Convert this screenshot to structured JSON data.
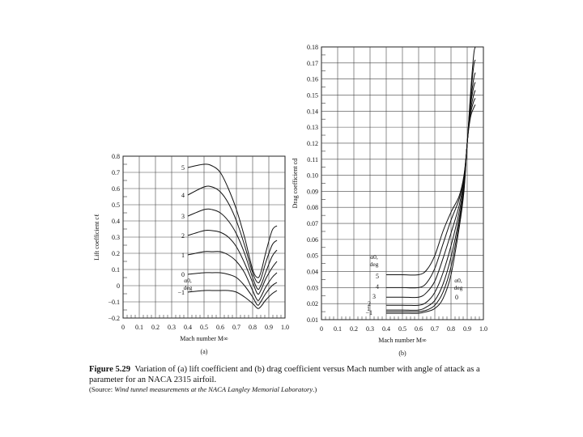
{
  "figure": {
    "label": "Figure 5.29",
    "caption": "Variation of (a) lift coefficient and (b) drag coefficient versus Mach number with angle of attack as a parameter for an NACA 2315 airfoil.",
    "source_prefix": "(Source: ",
    "source_text": "Wind tunnel measurements at the NACA Langley Memorial Laboratory",
    "source_suffix": ".)"
  },
  "chart_data": [
    {
      "type": "line",
      "panel": "(a)",
      "xlabel": "Mach number M∞",
      "ylabel": "Lift coefficient cℓ",
      "xlim": [
        0,
        1.0
      ],
      "ylim": [
        -0.2,
        0.8
      ],
      "xticks": [
        "0",
        "0.1",
        "0.2",
        "0.3",
        "0.4",
        "0.5",
        "0.6",
        "0.7",
        "0.8",
        "0.9",
        "1.0"
      ],
      "yticks": [
        "−0.2",
        "−0.1",
        "0",
        "0.1",
        "0.2",
        "0.3",
        "0.4",
        "0.5",
        "0.6",
        "0.7",
        "0.8"
      ],
      "grid": true,
      "annotation": [
        "α0,",
        "deg"
      ],
      "series": [
        {
          "name": "5",
          "x": [
            0.4,
            0.5,
            0.55,
            0.6,
            0.65,
            0.7,
            0.75,
            0.8,
            0.83,
            0.85,
            0.88,
            0.92,
            0.95
          ],
          "y": [
            0.73,
            0.75,
            0.74,
            0.7,
            0.6,
            0.47,
            0.3,
            0.1,
            0.05,
            0.08,
            0.2,
            0.34,
            0.37
          ]
        },
        {
          "name": "4",
          "x": [
            0.4,
            0.5,
            0.55,
            0.6,
            0.65,
            0.7,
            0.75,
            0.8,
            0.83,
            0.85,
            0.88,
            0.92,
            0.95
          ],
          "y": [
            0.56,
            0.61,
            0.61,
            0.58,
            0.51,
            0.4,
            0.25,
            0.08,
            0.02,
            0.04,
            0.14,
            0.25,
            0.28
          ]
        },
        {
          "name": "3",
          "x": [
            0.4,
            0.5,
            0.55,
            0.6,
            0.65,
            0.7,
            0.75,
            0.8,
            0.83,
            0.85,
            0.88,
            0.92,
            0.95
          ],
          "y": [
            0.43,
            0.47,
            0.47,
            0.45,
            0.4,
            0.32,
            0.2,
            0.05,
            -0.02,
            0.0,
            0.08,
            0.18,
            0.22
          ]
        },
        {
          "name": "2",
          "x": [
            0.4,
            0.5,
            0.55,
            0.6,
            0.65,
            0.7,
            0.75,
            0.8,
            0.83,
            0.85,
            0.88,
            0.92,
            0.95
          ],
          "y": [
            0.31,
            0.34,
            0.34,
            0.33,
            0.3,
            0.24,
            0.14,
            0.02,
            -0.05,
            -0.03,
            0.04,
            0.11,
            0.15
          ]
        },
        {
          "name": "1",
          "x": [
            0.4,
            0.5,
            0.55,
            0.6,
            0.65,
            0.7,
            0.75,
            0.8,
            0.83,
            0.85,
            0.88,
            0.92,
            0.95
          ],
          "y": [
            0.19,
            0.21,
            0.21,
            0.21,
            0.19,
            0.15,
            0.08,
            -0.03,
            -0.09,
            -0.07,
            -0.01,
            0.05,
            0.08
          ]
        },
        {
          "name": "0",
          "x": [
            0.4,
            0.5,
            0.55,
            0.6,
            0.65,
            0.7,
            0.75,
            0.8,
            0.83,
            0.85,
            0.88,
            0.92,
            0.95
          ],
          "y": [
            0.07,
            0.08,
            0.08,
            0.08,
            0.07,
            0.05,
            0.0,
            -0.07,
            -0.12,
            -0.1,
            -0.05,
            0.0,
            0.02
          ]
        },
        {
          "name": "−1",
          "x": [
            0.4,
            0.5,
            0.55,
            0.6,
            0.65,
            0.7,
            0.75,
            0.8,
            0.83,
            0.85,
            0.88,
            0.92,
            0.95
          ],
          "y": [
            -0.04,
            -0.03,
            -0.03,
            -0.03,
            -0.03,
            -0.04,
            -0.07,
            -0.11,
            -0.14,
            -0.13,
            -0.09,
            -0.05,
            -0.03
          ]
        }
      ]
    },
    {
      "type": "line",
      "panel": "(b)",
      "xlabel": "Mach number M∞",
      "ylabel": "Drag coefficient cd",
      "xlim": [
        0,
        1.0
      ],
      "ylim": [
        0.01,
        0.18
      ],
      "xticks": [
        "0",
        "0.1",
        "0.2",
        "0.3",
        "0.4",
        "0.5",
        "0.6",
        "0.7",
        "0.8",
        "0.9",
        "1.0"
      ],
      "yticks": [
        "0.01",
        "0.02",
        "0.03",
        "0.04",
        "0.05",
        "0.06",
        "0.07",
        "0.08",
        "0.09",
        "0.10",
        "0.11",
        "0.12",
        "0.13",
        "0.14",
        "0.15",
        "0.16",
        "0.17",
        "0.18"
      ],
      "grid": true,
      "annotations": [
        [
          "α0,",
          "deg"
        ],
        [
          "α0,",
          "deg"
        ]
      ],
      "series": [
        {
          "name": "5",
          "x": [
            0.4,
            0.5,
            0.6,
            0.65,
            0.7,
            0.75,
            0.8,
            0.85,
            0.88,
            0.9,
            0.92,
            0.94,
            0.95
          ],
          "y": [
            0.038,
            0.038,
            0.038,
            0.041,
            0.05,
            0.065,
            0.077,
            0.087,
            0.1,
            0.12,
            0.15,
            0.175,
            0.18
          ]
        },
        {
          "name": "4",
          "x": [
            0.4,
            0.5,
            0.6,
            0.65,
            0.7,
            0.75,
            0.8,
            0.85,
            0.88,
            0.9,
            0.92,
            0.94,
            0.95
          ],
          "y": [
            0.03,
            0.03,
            0.03,
            0.033,
            0.042,
            0.057,
            0.072,
            0.085,
            0.099,
            0.12,
            0.148,
            0.168,
            0.172
          ]
        },
        {
          "name": "3",
          "x": [
            0.4,
            0.5,
            0.6,
            0.65,
            0.7,
            0.75,
            0.8,
            0.85,
            0.88,
            0.9,
            0.92,
            0.94,
            0.95
          ],
          "y": [
            0.024,
            0.024,
            0.024,
            0.027,
            0.034,
            0.048,
            0.064,
            0.081,
            0.097,
            0.12,
            0.145,
            0.16,
            0.164
          ]
        },
        {
          "name": "2",
          "x": [
            0.4,
            0.5,
            0.6,
            0.65,
            0.7,
            0.75,
            0.8,
            0.85,
            0.88,
            0.9,
            0.92,
            0.94,
            0.95
          ],
          "y": [
            0.019,
            0.019,
            0.019,
            0.021,
            0.027,
            0.039,
            0.056,
            0.077,
            0.095,
            0.12,
            0.143,
            0.155,
            0.158
          ]
        },
        {
          "name": "1",
          "x": [
            0.4,
            0.5,
            0.6,
            0.65,
            0.7,
            0.75,
            0.8,
            0.85,
            0.88,
            0.9,
            0.92,
            0.94,
            0.95
          ],
          "y": [
            0.016,
            0.016,
            0.016,
            0.018,
            0.022,
            0.032,
            0.049,
            0.073,
            0.093,
            0.12,
            0.14,
            0.15,
            0.153
          ]
        },
        {
          "name": "0",
          "x": [
            0.4,
            0.5,
            0.6,
            0.65,
            0.7,
            0.75,
            0.8,
            0.85,
            0.88,
            0.9,
            0.92,
            0.94,
            0.95
          ],
          "y": [
            0.015,
            0.015,
            0.015,
            0.016,
            0.019,
            0.027,
            0.043,
            0.07,
            0.092,
            0.12,
            0.138,
            0.146,
            0.148
          ]
        },
        {
          "name": "−1",
          "x": [
            0.4,
            0.5,
            0.6,
            0.65,
            0.7,
            0.75,
            0.8,
            0.85,
            0.88,
            0.9,
            0.92,
            0.94,
            0.95
          ],
          "y": [
            0.014,
            0.014,
            0.014,
            0.015,
            0.017,
            0.023,
            0.038,
            0.067,
            0.09,
            0.12,
            0.136,
            0.142,
            0.144
          ]
        }
      ]
    }
  ]
}
